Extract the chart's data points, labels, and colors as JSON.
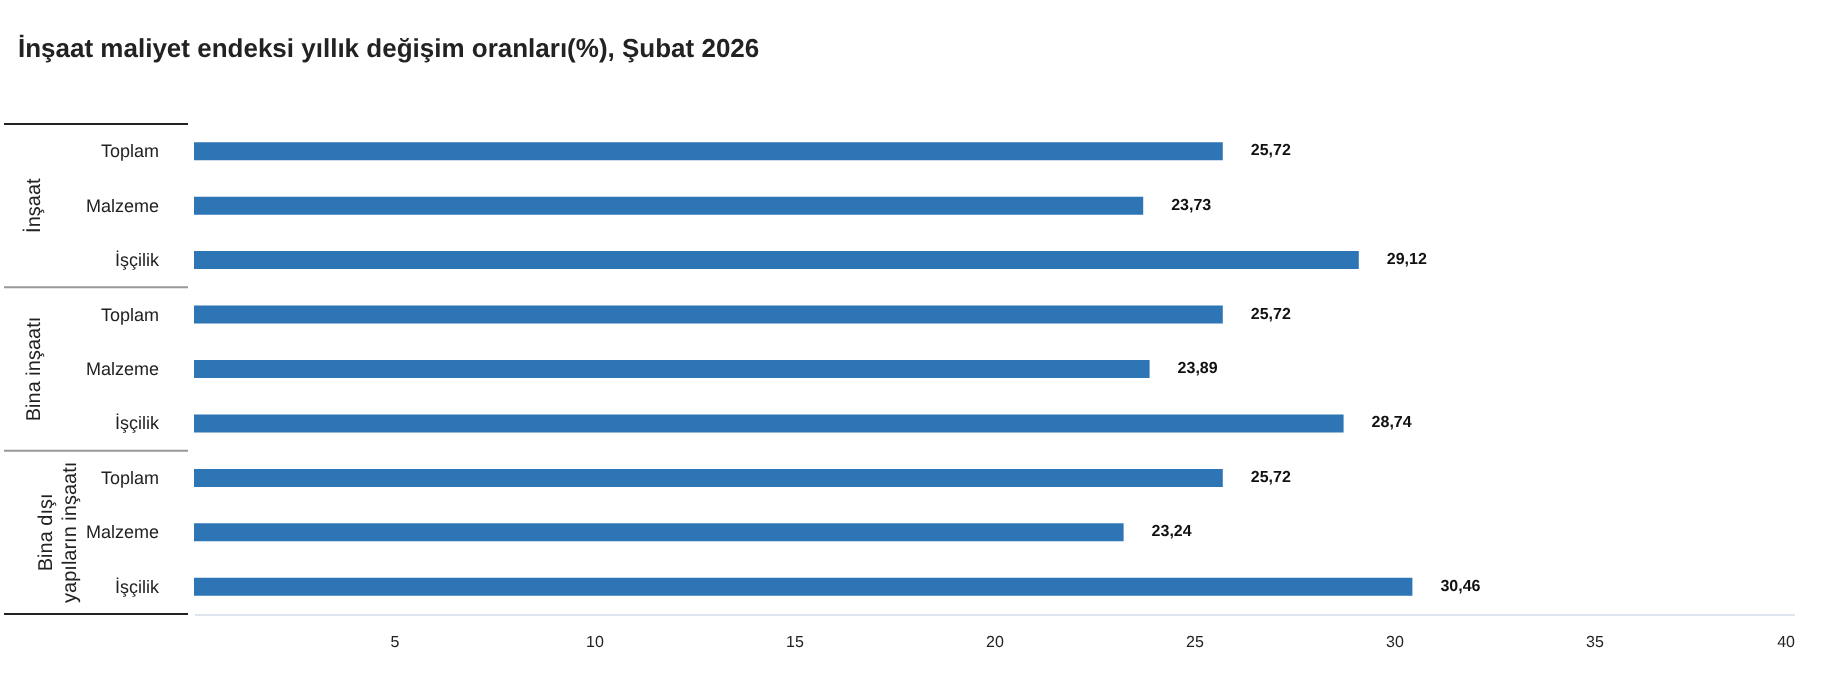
{
  "chart_data": {
    "type": "bar",
    "orientation": "horizontal",
    "title": "İnşaat maliyet endeksi yıllık değişim oranları(%), Şubat 2026",
    "categories": [
      "Toplam",
      "Malzeme",
      "İşçilik",
      "Toplam",
      "Malzeme",
      "İşçilik",
      "Toplam",
      "Malzeme",
      "İşçilik"
    ],
    "values": [
      25.72,
      23.73,
      29.12,
      25.72,
      23.89,
      28.74,
      25.72,
      23.24,
      30.46
    ],
    "value_labels": [
      "25,72",
      "23,73",
      "29,12",
      "25,72",
      "23,89",
      "28,74",
      "25,72",
      "23,24",
      "30,46"
    ],
    "color": "#2e75b6",
    "xlim": [
      0,
      40
    ],
    "xticks": [
      5,
      10,
      15,
      20,
      25,
      30,
      35,
      40
    ],
    "annotations": [
      "İnşaat",
      "Bina inşaatı",
      "Bina dışı yapıların inşaatı"
    ],
    "grid": false
  }
}
